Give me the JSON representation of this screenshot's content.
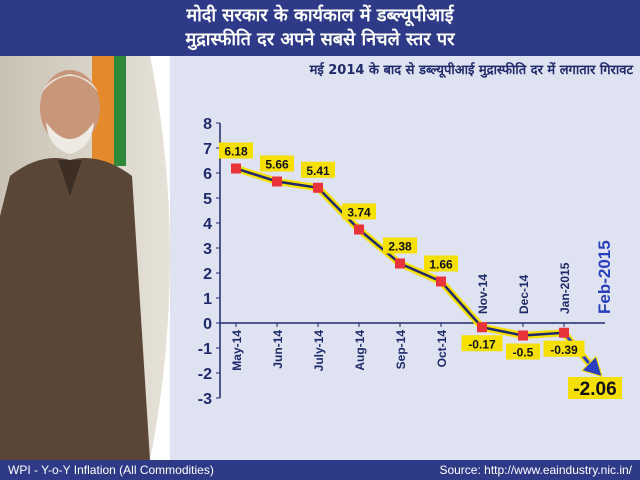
{
  "header": {
    "line1": "मोदी सरकार के कार्यकाल में डब्ल्यूपीआई",
    "line2": "मुद्रास्फीति दर अपने सबसे निचले स्तर पर"
  },
  "footer": {
    "left": "WPI - Y-o-Y Inflation (All Commodities)",
    "right": "Source: http://www.eaindustry.nic.in/"
  },
  "colors": {
    "header_bg": "#2e3a87",
    "line": "#1f2a6b",
    "line_glow": "#f5e000",
    "marker": "#e8333a",
    "label_bg": "#f5e000",
    "arrow": "#2a3fbf",
    "axis_text": "#1f2a6b"
  },
  "chart_data": {
    "type": "line",
    "title": "मई 2014 के बाद से डब्ल्यूपीआई मुद्रास्फीति दर में लगातार गिरावट",
    "xlabel": "",
    "ylabel": "",
    "ylim": [
      -3,
      8
    ],
    "yticks": [
      8,
      7,
      6,
      5,
      4,
      3,
      2,
      1,
      0,
      -1,
      -2,
      -3
    ],
    "grid": false,
    "categories": [
      "May-14",
      "Jun-14",
      "July-14",
      "Aug-14",
      "Sep-14",
      "Oct-14",
      "Nov-14",
      "Dec-14",
      "Jan-2015",
      "Feb-2015"
    ],
    "x": [
      "2014-05",
      "2014-06",
      "2014-07",
      "2014-08",
      "2014-09",
      "2014-10",
      "2014-11",
      "2014-12",
      "2015-01",
      "2015-02"
    ],
    "values": [
      6.18,
      5.66,
      5.41,
      3.74,
      2.38,
      1.66,
      -0.17,
      -0.5,
      -0.39,
      -2.06
    ],
    "data_labels": [
      "6.18",
      "5.66",
      "5.41",
      "3.74",
      "2.38",
      "1.66",
      "-0.17",
      "-0.5",
      "-0.39",
      "-2.06"
    ]
  }
}
